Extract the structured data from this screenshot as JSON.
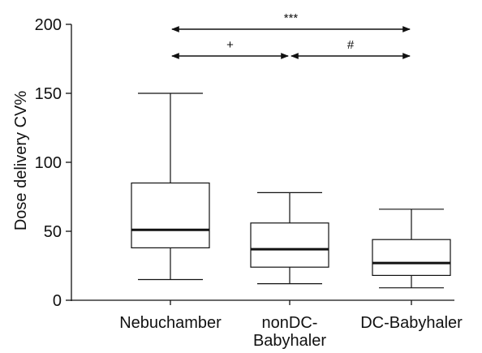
{
  "chart_data": {
    "type": "boxplot",
    "title": "",
    "xlabel": "",
    "ylabel": "Dose delivery CV%",
    "ylim": [
      0,
      200
    ],
    "yticks": [
      "0",
      "50",
      "100",
      "150",
      "200"
    ],
    "grid": false,
    "categories": [
      {
        "label_lines": [
          "Nebuchamber"
        ],
        "min": 15,
        "q1": 38,
        "median": 51,
        "q3": 85,
        "max": 150
      },
      {
        "label_lines": [
          "nonDC-",
          "Babyhaler"
        ],
        "min": 12,
        "q1": 24,
        "median": 37,
        "q3": 56,
        "max": 78
      },
      {
        "label_lines": [
          "DC-Babyhaler"
        ],
        "min": 9,
        "q1": 18,
        "median": 27,
        "q3": 44,
        "max": 66
      }
    ],
    "annotations": [
      {
        "text": "***",
        "from": 0,
        "to": 2,
        "level": 1
      },
      {
        "text": "+",
        "from": 0,
        "to": 1,
        "level": 0
      },
      {
        "text": "#",
        "from": 1,
        "to": 2,
        "level": 0
      }
    ],
    "colors": {
      "box": "#111111",
      "median": "#111111",
      "background": "#ffffff"
    }
  }
}
